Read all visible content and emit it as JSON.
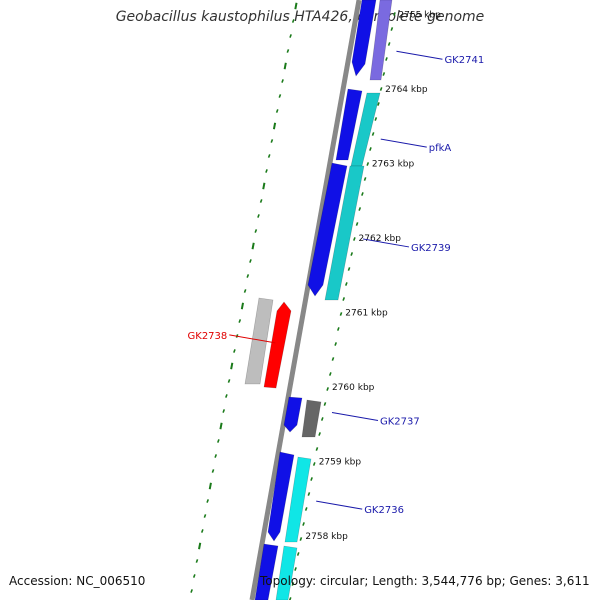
{
  "title": "Geobacillus kaustophilus HTA426, complete genome",
  "footer": {
    "accession": "Accession: NC_006510",
    "summary": "Topology: circular; Length: 3,544,776 bp; Genes: 3,611"
  },
  "colors": {
    "backbone": "#888888",
    "tick": "#1a7a1a",
    "label_default": "#1a1aaa",
    "label_highlight": "#e00000",
    "blue": "#1010e6",
    "cyan": "#19c8c8",
    "bright_cyan": "#10e6e6",
    "purple": "#7a6ae0",
    "grey": "#666666",
    "light_grey": "#bdbdbd",
    "red": "#ff0000"
  },
  "kbp_labels": [
    {
      "text": "2765 kbp",
      "pos": 2765
    },
    {
      "text": "2764 kbp",
      "pos": 2764
    },
    {
      "text": "2763 kbp",
      "pos": 2763
    },
    {
      "text": "2762 kbp",
      "pos": 2762
    },
    {
      "text": "2761 kbp",
      "pos": 2761
    },
    {
      "text": "2760 kbp",
      "pos": 2760
    },
    {
      "text": "2759 kbp",
      "pos": 2759
    },
    {
      "text": "2758 kbp",
      "pos": 2758
    }
  ],
  "gene_labels": [
    {
      "text": "GK2741",
      "side": "right",
      "highlight": false,
      "pos": 2764.4
    },
    {
      "text": "pfkA",
      "side": "right",
      "highlight": false,
      "pos": 2763.22
    },
    {
      "text": "GK2739",
      "side": "right",
      "highlight": false,
      "pos": 2761.88
    },
    {
      "text": "GK2738",
      "side": "left",
      "highlight": true,
      "pos": 2760.7
    },
    {
      "text": "GK2737",
      "side": "right",
      "highlight": false,
      "pos": 2759.55
    },
    {
      "text": "GK2736",
      "side": "right",
      "highlight": false,
      "pos": 2758.36
    }
  ]
}
